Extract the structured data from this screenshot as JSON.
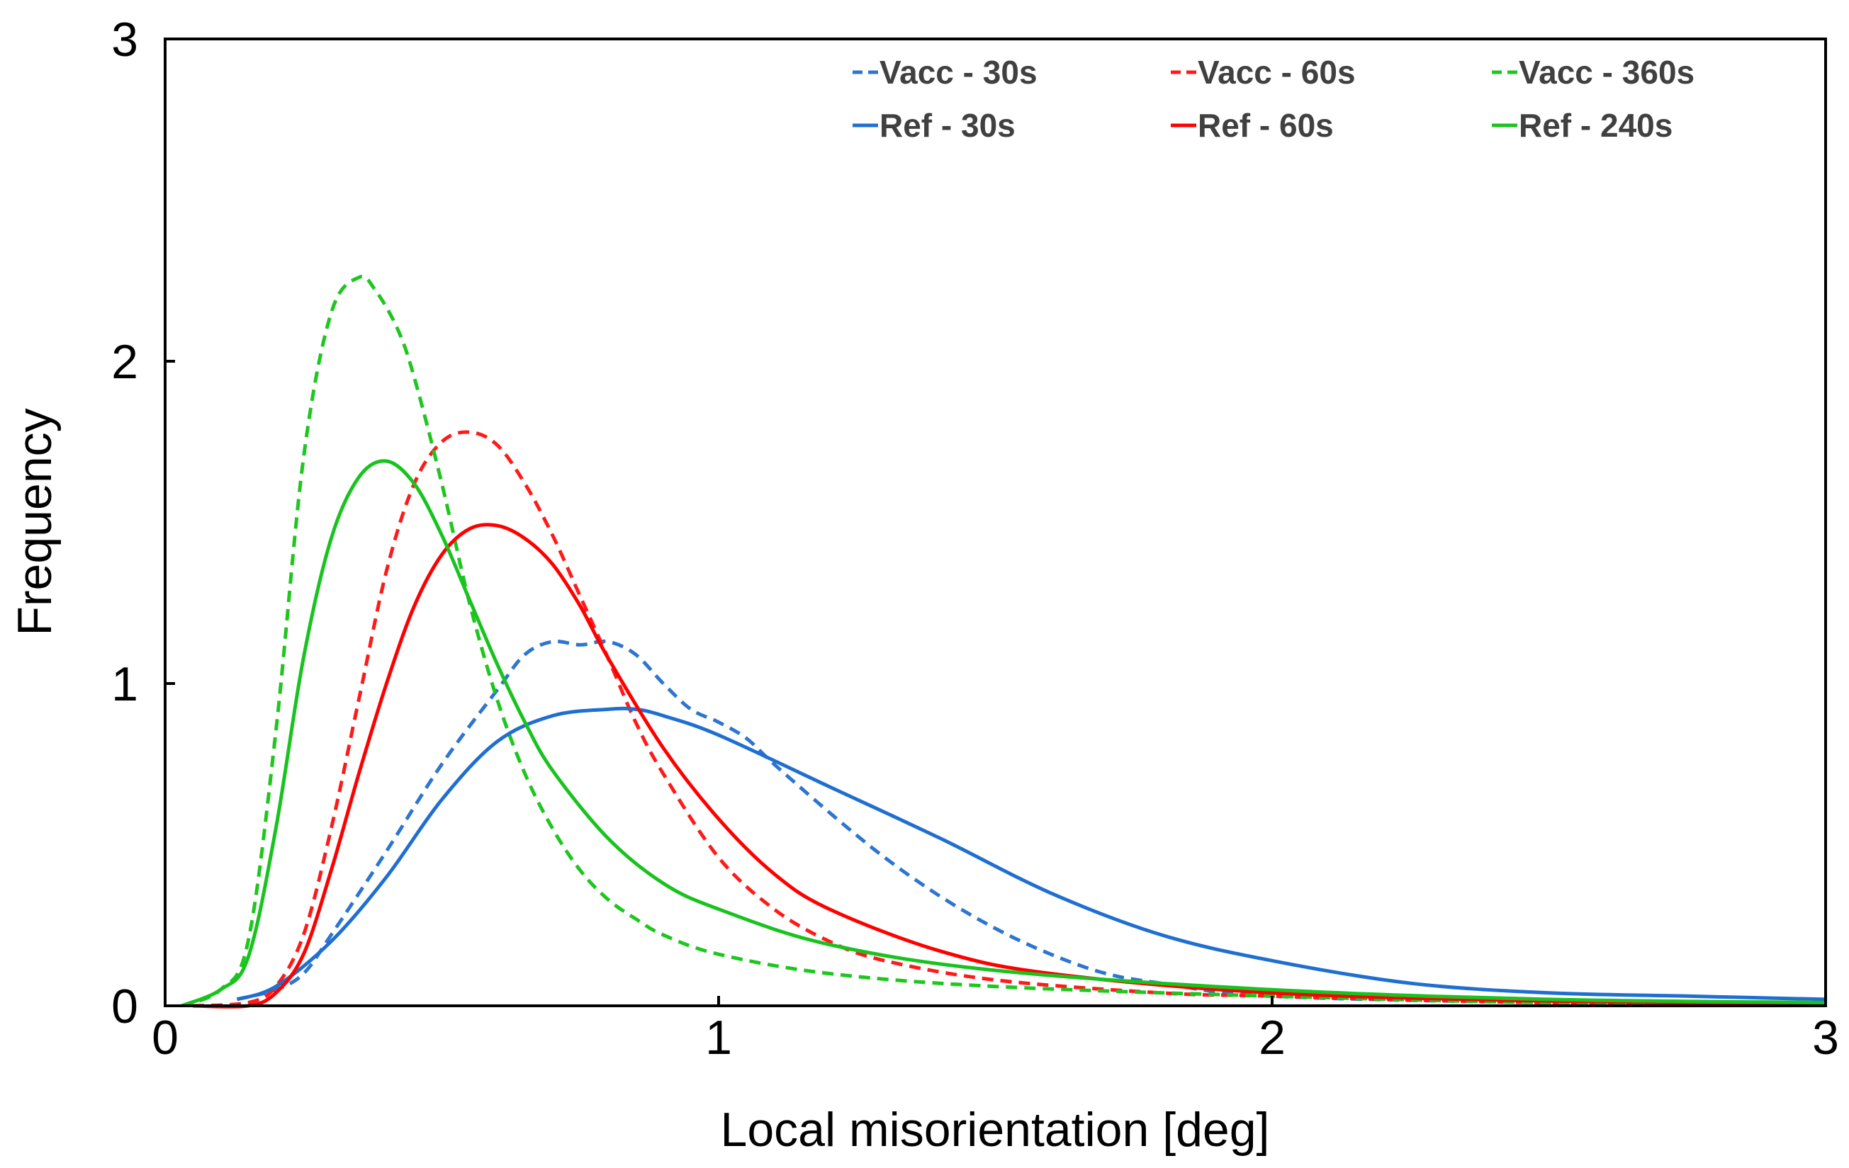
{
  "chart_data": {
    "type": "line",
    "title": "",
    "xlabel": "Local misorientation [deg]",
    "ylabel": "Frequency",
    "xlim": [
      0,
      3
    ],
    "ylim": [
      0,
      3
    ],
    "xticks": [
      "0",
      "1",
      "2",
      "3"
    ],
    "yticks": [
      "0",
      "1",
      "2",
      "3"
    ],
    "grid": false,
    "legend_position": "top-right",
    "series": [
      {
        "name": "Vacc - 30s",
        "color": "#2E75D0",
        "dash": "dashed",
        "x": [
          0.13,
          0.2,
          0.25,
          0.3,
          0.4,
          0.5,
          0.6,
          0.65,
          0.7,
          0.75,
          0.8,
          0.85,
          0.9,
          0.95,
          1.0,
          1.05,
          1.1,
          1.2,
          1.3,
          1.4,
          1.5,
          1.6,
          1.7,
          1.8,
          2.0,
          2.5,
          3.0
        ],
        "y": [
          0.02,
          0.05,
          0.1,
          0.22,
          0.48,
          0.75,
          0.98,
          1.09,
          1.13,
          1.12,
          1.13,
          1.09,
          1.0,
          0.92,
          0.88,
          0.83,
          0.75,
          0.6,
          0.46,
          0.34,
          0.24,
          0.16,
          0.1,
          0.07,
          0.03,
          0.01,
          0.005
        ]
      },
      {
        "name": "Vacc - 60s",
        "color": "#FF1A1A",
        "dash": "dashed",
        "x": [
          0.05,
          0.15,
          0.2,
          0.25,
          0.3,
          0.35,
          0.4,
          0.45,
          0.5,
          0.55,
          0.6,
          0.65,
          0.7,
          0.75,
          0.8,
          0.85,
          0.9,
          1.0,
          1.1,
          1.2,
          1.3,
          1.5,
          1.8,
          2.0,
          2.5,
          3.0
        ],
        "y": [
          0.0,
          0.01,
          0.06,
          0.22,
          0.55,
          0.95,
          1.35,
          1.62,
          1.75,
          1.78,
          1.74,
          1.62,
          1.46,
          1.27,
          1.08,
          0.88,
          0.72,
          0.46,
          0.3,
          0.2,
          0.14,
          0.08,
          0.04,
          0.03,
          0.01,
          0.005
        ]
      },
      {
        "name": "Vacc - 360s",
        "color": "#1EC61E",
        "dash": "dashed",
        "x": [
          0.03,
          0.1,
          0.15,
          0.2,
          0.25,
          0.3,
          0.35,
          0.38,
          0.42,
          0.45,
          0.5,
          0.55,
          0.6,
          0.65,
          0.7,
          0.75,
          0.8,
          0.85,
          0.9,
          1.0,
          1.2,
          1.5,
          2.0,
          2.5,
          3.0
        ],
        "y": [
          0.0,
          0.05,
          0.2,
          0.85,
          1.7,
          2.15,
          2.26,
          2.22,
          2.1,
          1.95,
          1.62,
          1.25,
          0.95,
          0.72,
          0.55,
          0.42,
          0.33,
          0.27,
          0.22,
          0.16,
          0.1,
          0.06,
          0.03,
          0.01,
          0.005
        ]
      },
      {
        "name": "Ref - 30s",
        "color": "#1F6FD1",
        "dash": "solid",
        "x": [
          0.13,
          0.2,
          0.3,
          0.4,
          0.5,
          0.6,
          0.7,
          0.8,
          0.85,
          0.9,
          1.0,
          1.2,
          1.4,
          1.6,
          1.8,
          2.0,
          2.25,
          2.5,
          2.75,
          3.0
        ],
        "y": [
          0.02,
          0.06,
          0.2,
          0.4,
          0.64,
          0.82,
          0.9,
          0.92,
          0.92,
          0.9,
          0.84,
          0.68,
          0.52,
          0.35,
          0.22,
          0.14,
          0.07,
          0.04,
          0.03,
          0.02
        ]
      },
      {
        "name": "Ref - 60s",
        "color": "#FF0000",
        "dash": "solid",
        "x": [
          0.05,
          0.15,
          0.2,
          0.25,
          0.3,
          0.35,
          0.4,
          0.45,
          0.5,
          0.55,
          0.6,
          0.65,
          0.7,
          0.75,
          0.8,
          0.9,
          1.0,
          1.1,
          1.2,
          1.4,
          1.6,
          2.0,
          2.5,
          3.0
        ],
        "y": [
          0.0,
          0.0,
          0.04,
          0.16,
          0.42,
          0.72,
          1.0,
          1.24,
          1.4,
          1.48,
          1.49,
          1.45,
          1.37,
          1.24,
          1.08,
          0.8,
          0.58,
          0.41,
          0.3,
          0.17,
          0.1,
          0.04,
          0.015,
          0.005
        ]
      },
      {
        "name": "Ref - 240s",
        "color": "#19C31F",
        "dash": "solid",
        "x": [
          0.03,
          0.1,
          0.15,
          0.2,
          0.25,
          0.3,
          0.35,
          0.4,
          0.45,
          0.5,
          0.55,
          0.6,
          0.65,
          0.7,
          0.8,
          0.9,
          1.0,
          1.2,
          1.5,
          2.0,
          2.5,
          3.0
        ],
        "y": [
          0.0,
          0.05,
          0.15,
          0.55,
          1.08,
          1.45,
          1.64,
          1.69,
          1.62,
          1.46,
          1.26,
          1.06,
          0.88,
          0.73,
          0.52,
          0.38,
          0.3,
          0.19,
          0.11,
          0.05,
          0.02,
          0.01
        ]
      }
    ]
  }
}
